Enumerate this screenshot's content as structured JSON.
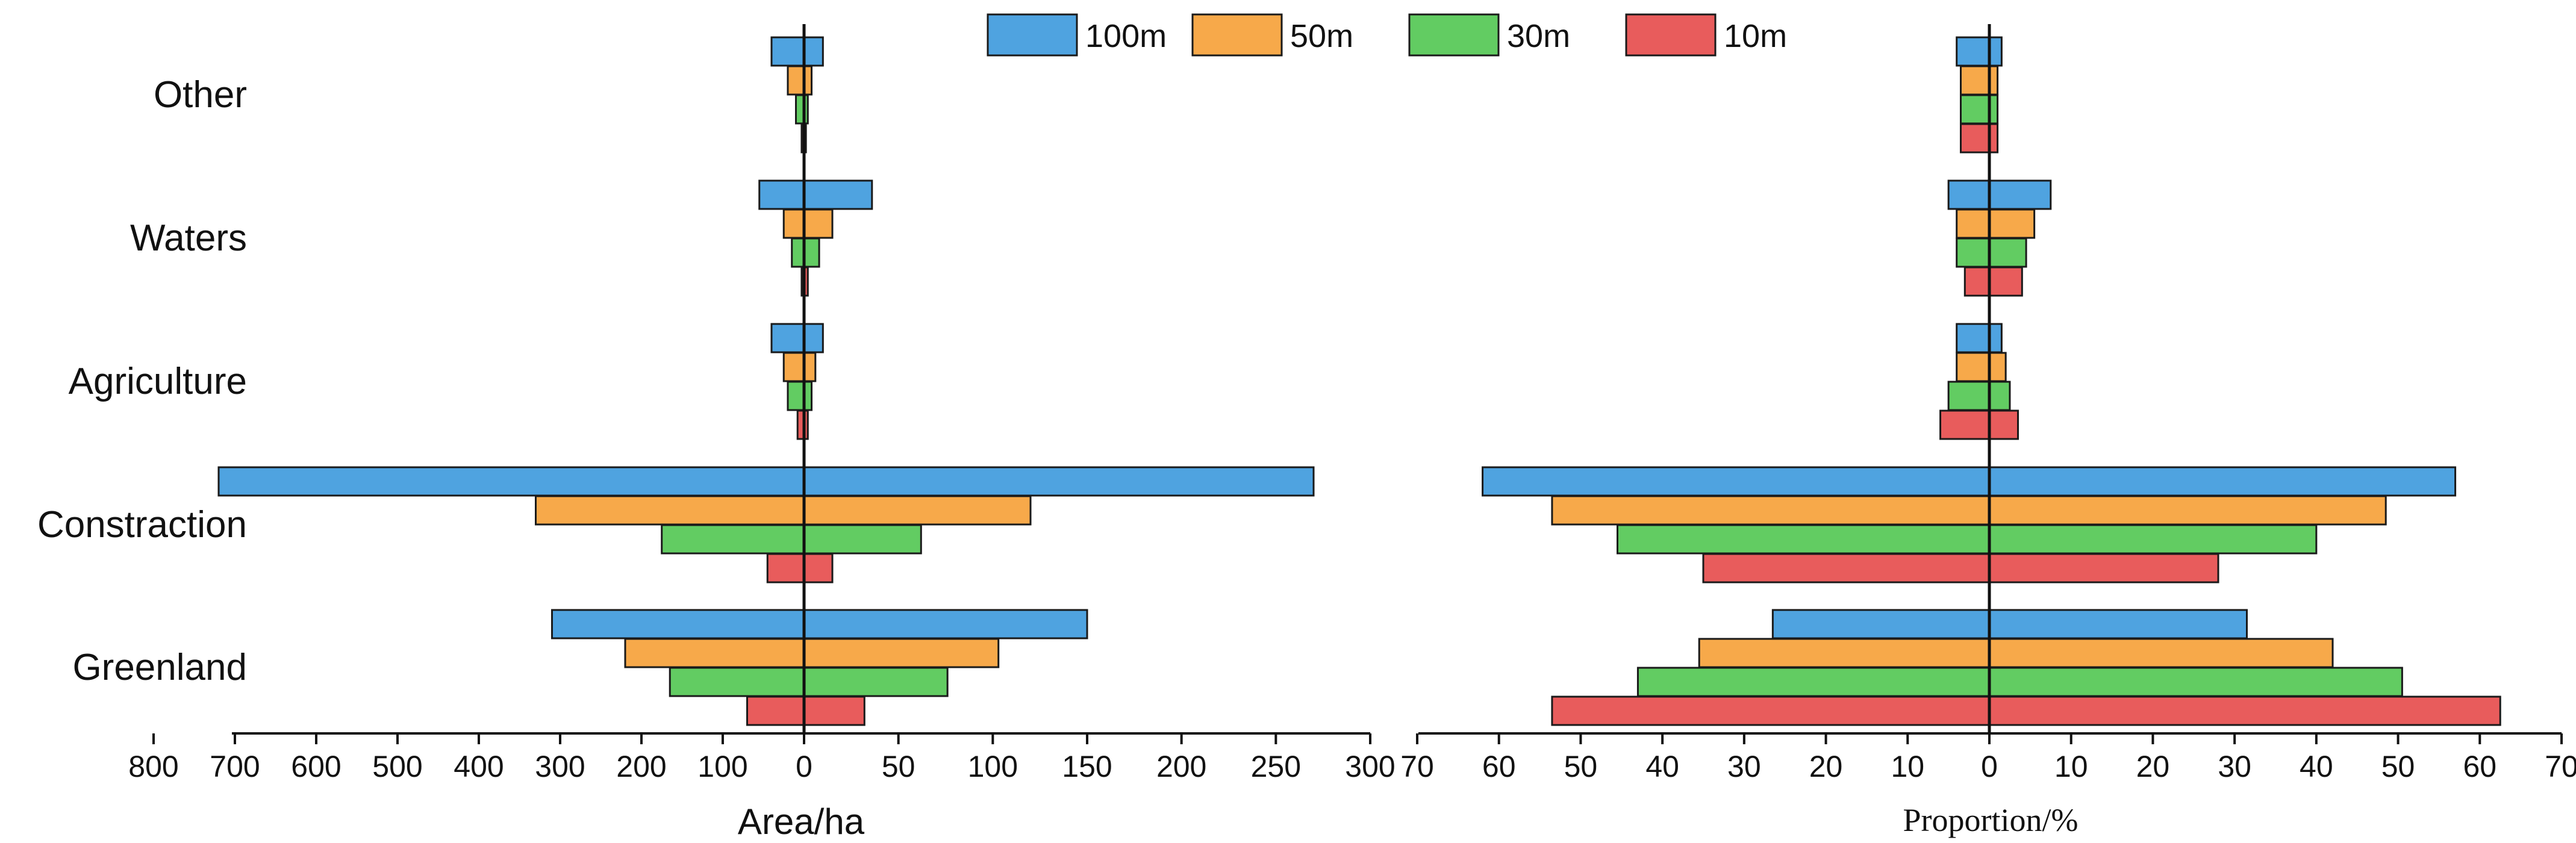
{
  "chart_data": {
    "type": "bar",
    "orientation": "horizontal-diverging",
    "categories": [
      "Other",
      "Waters",
      "Agriculture",
      "Constraction",
      "Greenland"
    ],
    "legend": [
      {
        "name": "100m",
        "color": "#4fa3e0"
      },
      {
        "name": "50m",
        "color": "#f7a94a"
      },
      {
        "name": "30m",
        "color": "#62cc62"
      },
      {
        "name": "10m",
        "color": "#e85c5c"
      }
    ],
    "panels": [
      {
        "id": "area",
        "xlabel": "Area/ha",
        "left_ticks": [
          800,
          700,
          600,
          500,
          400,
          300,
          200,
          100,
          0
        ],
        "right_ticks": [
          0,
          50,
          100,
          150,
          200,
          250,
          300
        ],
        "left_range": [
          0,
          800
        ],
        "right_range": [
          0,
          300
        ],
        "series": [
          {
            "name": "100m",
            "left": [
              40,
              55,
              40,
              720,
              310
            ],
            "right": [
              10,
              36,
              10,
              270,
              150
            ]
          },
          {
            "name": "50m",
            "left": [
              20,
              25,
              25,
              330,
              220
            ],
            "right": [
              4,
              15,
              6,
              120,
              103
            ]
          },
          {
            "name": "30m",
            "left": [
              10,
              15,
              20,
              175,
              165
            ],
            "right": [
              2,
              8,
              4,
              62,
              76
            ]
          },
          {
            "name": "10m",
            "left": [
              3,
              3,
              8,
              45,
              70
            ],
            "right": [
              1,
              2,
              2,
              15,
              32
            ]
          }
        ]
      },
      {
        "id": "proportion",
        "xlabel": "Proportion/%",
        "left_ticks": [
          70,
          60,
          50,
          40,
          30,
          20,
          10,
          0
        ],
        "right_ticks": [
          0,
          10,
          20,
          30,
          40,
          50,
          60,
          70
        ],
        "left_range": [
          0,
          70
        ],
        "right_range": [
          0,
          70
        ],
        "series": [
          {
            "name": "100m",
            "left": [
              4,
              5,
              4,
              62,
              26.5
            ],
            "right": [
              1.5,
              7.5,
              1.5,
              57,
              31.5
            ]
          },
          {
            "name": "50m",
            "left": [
              3.5,
              4,
              4,
              53.5,
              35.5
            ],
            "right": [
              1,
              5.5,
              2,
              48.5,
              42
            ]
          },
          {
            "name": "30m",
            "left": [
              3.5,
              4,
              5,
              45.5,
              43
            ],
            "right": [
              1,
              4.5,
              2.5,
              40,
              50.5
            ]
          },
          {
            "name": "10m",
            "left": [
              3.5,
              3,
              6,
              35,
              53.5
            ],
            "right": [
              1,
              4,
              3.5,
              28,
              62.5
            ]
          }
        ]
      }
    ]
  }
}
